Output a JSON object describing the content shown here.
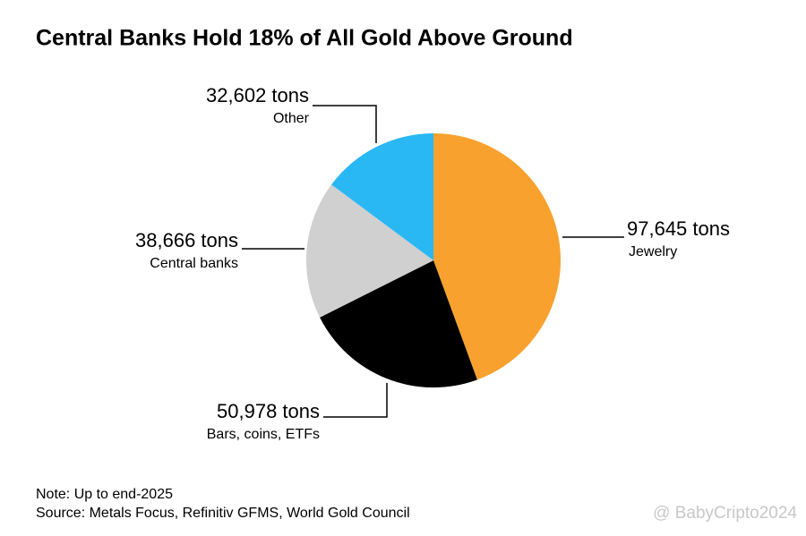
{
  "chart_data": {
    "type": "pie",
    "title": "Central Banks Hold 18% of All Gold Above Ground",
    "categories": [
      "Jewelry",
      "Bars, coins, ETFs",
      "Central banks",
      "Other"
    ],
    "values": [
      97645,
      50978,
      38666,
      32602
    ],
    "value_labels": [
      "97,645 tons",
      "50,978 tons",
      "38,666 tons",
      "32,602 tons"
    ],
    "colors": [
      "#f9a12e",
      "#000000",
      "#d0d0d0",
      "#2ab8f5"
    ],
    "note": "Note: Up to end-2025",
    "source": "Source: Metals Focus, Refinitiv GFMS, World Gold Council"
  },
  "watermark": "@ BabyCripto2024"
}
